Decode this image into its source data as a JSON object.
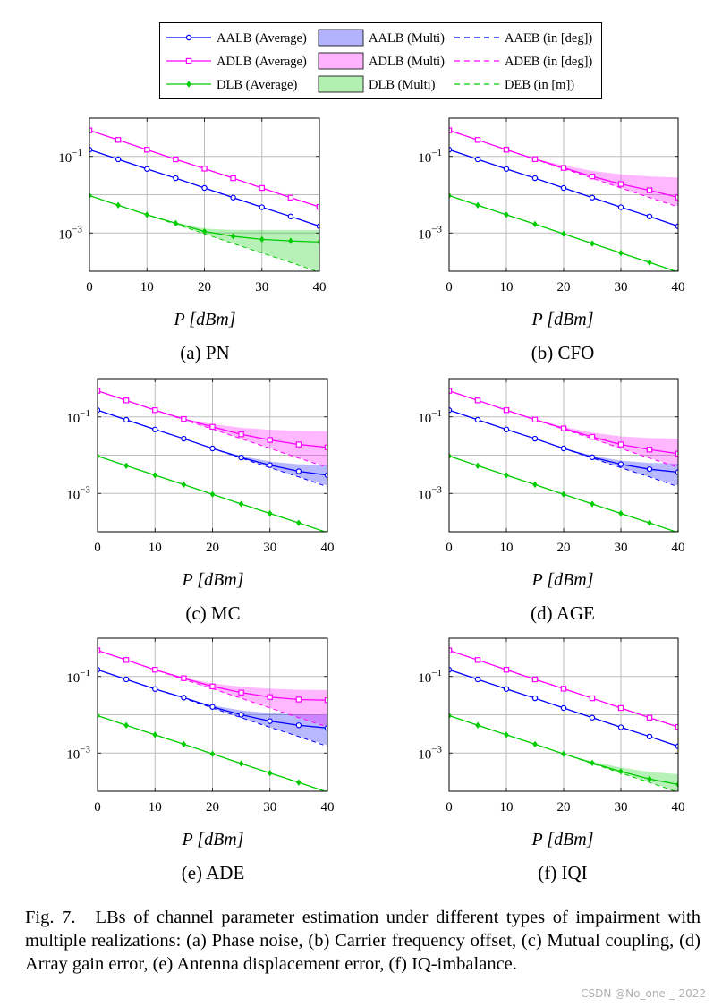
{
  "legend": {
    "entries": [
      {
        "label": "AALB (Average)",
        "kind": "line-marker",
        "color": "#0000ff",
        "marker": "circle"
      },
      {
        "label": "AALB (Multi)",
        "kind": "fill",
        "color": "#0000ff"
      },
      {
        "label": "AAEB (in [deg])",
        "kind": "dashed",
        "color": "#0000ff"
      },
      {
        "label": "ADLB (Average)",
        "kind": "line-marker",
        "color": "#ff00ff",
        "marker": "square"
      },
      {
        "label": "ADLB (Multi)",
        "kind": "fill",
        "color": "#ff00ff"
      },
      {
        "label": "ADEB (in [deg])",
        "kind": "dashed",
        "color": "#ff00ff"
      },
      {
        "label": "DLB (Average)",
        "kind": "line-marker",
        "color": "#00cc00",
        "marker": "diamond"
      },
      {
        "label": "DLB (Multi)",
        "kind": "fill",
        "color": "#00cc00"
      },
      {
        "label": "DEB (in [m])",
        "kind": "dashed",
        "color": "#00cc00"
      }
    ]
  },
  "caption": {
    "label": "Fig. 7.",
    "text": "LBs of channel parameter estimation under different types of impairment with multiple realizations: (a) Phase noise, (b) Carrier frequency offset, (c) Mutual coupling, (d) Array gain error, (e) Antenna displacement error, (f) IQ-imbalance."
  },
  "watermark": "CSDN @No_one-_-2022",
  "chart_data": [
    {
      "type": "line",
      "subcaption": "(a) PN",
      "xlabel": "P [dBm]",
      "ylabel": "",
      "x": [
        0,
        5,
        10,
        15,
        20,
        25,
        30,
        35,
        40
      ],
      "xlim": [
        0,
        40
      ],
      "ylim_log10": [
        -4,
        0
      ],
      "yscale": "log",
      "xticks": [
        "0",
        "10",
        "20",
        "30",
        "40"
      ],
      "yticks": [
        "10^-1",
        "10^-3"
      ],
      "grid": true,
      "series": [
        {
          "name": "AALB (Average)",
          "values": [
            0.15,
            0.084,
            0.047,
            0.027,
            0.015,
            0.0084,
            0.0047,
            0.0027,
            0.0015
          ]
        },
        {
          "name": "AAEB (in [deg])",
          "values": [
            0.15,
            0.084,
            0.047,
            0.027,
            0.015,
            0.0084,
            0.0047,
            0.0027,
            0.0015
          ]
        },
        {
          "name": "ADLB (Average)",
          "values": [
            0.48,
            0.27,
            0.15,
            0.084,
            0.048,
            0.027,
            0.015,
            0.0084,
            0.0048
          ]
        },
        {
          "name": "ADEB (in [deg])",
          "values": [
            0.48,
            0.27,
            0.15,
            0.084,
            0.048,
            0.027,
            0.015,
            0.0084,
            0.0048
          ]
        },
        {
          "name": "DLB (Average)",
          "values": [
            0.0095,
            0.0053,
            0.003,
            0.0018,
            0.0011,
            0.00082,
            0.00068,
            0.00062,
            0.00058
          ]
        },
        {
          "name": "DEB (in [m])",
          "values": [
            0.0095,
            0.0053,
            0.003,
            0.0017,
            0.00095,
            0.00053,
            0.0003,
            0.00017,
            9.5e-05
          ]
        },
        {
          "name": "DLB (Multi) lower",
          "values": [
            0.0095,
            0.0053,
            0.003,
            0.0017,
            0.00095,
            0.00053,
            0.0003,
            0.00017,
            0.0001
          ]
        },
        {
          "name": "DLB (Multi) upper",
          "values": [
            0.0095,
            0.0053,
            0.003,
            0.0019,
            0.0013,
            0.0012,
            0.0012,
            0.0012,
            0.0012
          ]
        }
      ]
    },
    {
      "type": "line",
      "subcaption": "(b) CFO",
      "xlabel": "P [dBm]",
      "ylabel": "",
      "x": [
        0,
        5,
        10,
        15,
        20,
        25,
        30,
        35,
        40
      ],
      "xlim": [
        0,
        40
      ],
      "ylim_log10": [
        -4,
        0
      ],
      "yscale": "log",
      "xticks": [
        "0",
        "10",
        "20",
        "30",
        "40"
      ],
      "yticks": [
        "10^-1",
        "10^-3"
      ],
      "grid": true,
      "series": [
        {
          "name": "AALB (Average)",
          "values": [
            0.15,
            0.084,
            0.047,
            0.027,
            0.015,
            0.0084,
            0.0047,
            0.0027,
            0.0015
          ]
        },
        {
          "name": "AAEB (in [deg])",
          "values": [
            0.15,
            0.084,
            0.047,
            0.027,
            0.015,
            0.0084,
            0.0047,
            0.0027,
            0.0015
          ]
        },
        {
          "name": "ADLB (Average)",
          "values": [
            0.48,
            0.27,
            0.15,
            0.085,
            0.05,
            0.03,
            0.019,
            0.013,
            0.0085
          ]
        },
        {
          "name": "ADEB (in [deg])",
          "values": [
            0.48,
            0.27,
            0.15,
            0.084,
            0.048,
            0.027,
            0.015,
            0.0084,
            0.0048
          ]
        },
        {
          "name": "ADLB (Multi) lower",
          "values": [
            0.48,
            0.27,
            0.15,
            0.084,
            0.048,
            0.027,
            0.015,
            0.0085,
            0.005
          ]
        },
        {
          "name": "ADLB (Multi) upper",
          "values": [
            0.48,
            0.27,
            0.15,
            0.088,
            0.058,
            0.042,
            0.034,
            0.03,
            0.028
          ]
        },
        {
          "name": "DLB (Average)",
          "values": [
            0.0095,
            0.0053,
            0.003,
            0.0017,
            0.00095,
            0.00053,
            0.0003,
            0.00017,
            9.5e-05
          ]
        },
        {
          "name": "DEB (in [m])",
          "values": [
            0.0095,
            0.0053,
            0.003,
            0.0017,
            0.00095,
            0.00053,
            0.0003,
            0.00017,
            9.5e-05
          ]
        }
      ]
    },
    {
      "type": "line",
      "subcaption": "(c) MC",
      "xlabel": "P [dBm]",
      "ylabel": "",
      "x": [
        0,
        5,
        10,
        15,
        20,
        25,
        30,
        35,
        40
      ],
      "xlim": [
        0,
        40
      ],
      "ylim_log10": [
        -4,
        0
      ],
      "yscale": "log",
      "xticks": [
        "0",
        "10",
        "20",
        "30",
        "40"
      ],
      "yticks": [
        "10^-1",
        "10^-3"
      ],
      "grid": true,
      "series": [
        {
          "name": "AALB (Average)",
          "values": [
            0.15,
            0.084,
            0.047,
            0.027,
            0.015,
            0.0087,
            0.0055,
            0.0038,
            0.003
          ]
        },
        {
          "name": "AAEB (in [deg])",
          "values": [
            0.15,
            0.084,
            0.047,
            0.027,
            0.015,
            0.0084,
            0.0047,
            0.0027,
            0.0015
          ]
        },
        {
          "name": "AALB (Multi) lower",
          "values": [
            0.15,
            0.084,
            0.047,
            0.027,
            0.015,
            0.0084,
            0.0047,
            0.0027,
            0.0016
          ]
        },
        {
          "name": "AALB (Multi) upper",
          "values": [
            0.15,
            0.084,
            0.047,
            0.027,
            0.0155,
            0.0095,
            0.0068,
            0.0058,
            0.0055
          ]
        },
        {
          "name": "ADLB (Average)",
          "values": [
            0.48,
            0.27,
            0.15,
            0.088,
            0.055,
            0.035,
            0.025,
            0.019,
            0.016
          ]
        },
        {
          "name": "ADEB (in [deg])",
          "values": [
            0.48,
            0.27,
            0.15,
            0.084,
            0.048,
            0.027,
            0.015,
            0.0084,
            0.0048
          ]
        },
        {
          "name": "ADLB (Multi) lower",
          "values": [
            0.48,
            0.27,
            0.15,
            0.084,
            0.048,
            0.027,
            0.015,
            0.0085,
            0.005
          ]
        },
        {
          "name": "ADLB (Multi) upper",
          "values": [
            0.48,
            0.27,
            0.15,
            0.09,
            0.065,
            0.052,
            0.046,
            0.043,
            0.042
          ]
        },
        {
          "name": "DLB (Average)",
          "values": [
            0.0095,
            0.0053,
            0.003,
            0.0017,
            0.00095,
            0.00053,
            0.0003,
            0.00017,
            9.5e-05
          ]
        },
        {
          "name": "DEB (in [m])",
          "values": [
            0.0095,
            0.0053,
            0.003,
            0.0017,
            0.00095,
            0.00053,
            0.0003,
            0.00017,
            9.5e-05
          ]
        }
      ]
    },
    {
      "type": "line",
      "subcaption": "(d) AGE",
      "xlabel": "P [dBm]",
      "ylabel": "",
      "x": [
        0,
        5,
        10,
        15,
        20,
        25,
        30,
        35,
        40
      ],
      "xlim": [
        0,
        40
      ],
      "ylim_log10": [
        -4,
        0
      ],
      "yscale": "log",
      "xticks": [
        "0",
        "10",
        "20",
        "30",
        "40"
      ],
      "yticks": [
        "10^-1",
        "10^-3"
      ],
      "grid": true,
      "series": [
        {
          "name": "AALB (Average)",
          "values": [
            0.15,
            0.084,
            0.047,
            0.027,
            0.015,
            0.0088,
            0.0058,
            0.0043,
            0.0036
          ]
        },
        {
          "name": "AAEB (in [deg])",
          "values": [
            0.15,
            0.084,
            0.047,
            0.027,
            0.015,
            0.0084,
            0.0047,
            0.0027,
            0.0015
          ]
        },
        {
          "name": "AALB (Multi) lower",
          "values": [
            0.15,
            0.084,
            0.047,
            0.027,
            0.015,
            0.0084,
            0.0047,
            0.0027,
            0.0016
          ]
        },
        {
          "name": "AALB (Multi) upper",
          "values": [
            0.15,
            0.084,
            0.047,
            0.027,
            0.0155,
            0.0097,
            0.0072,
            0.0063,
            0.006
          ]
        },
        {
          "name": "ADLB (Average)",
          "values": [
            0.48,
            0.27,
            0.15,
            0.085,
            0.05,
            0.03,
            0.019,
            0.014,
            0.011
          ]
        },
        {
          "name": "ADEB (in [deg])",
          "values": [
            0.48,
            0.27,
            0.15,
            0.084,
            0.048,
            0.027,
            0.015,
            0.0084,
            0.0048
          ]
        },
        {
          "name": "ADLB (Multi) lower",
          "values": [
            0.48,
            0.27,
            0.15,
            0.084,
            0.048,
            0.027,
            0.015,
            0.0085,
            0.005
          ]
        },
        {
          "name": "ADLB (Multi) upper",
          "values": [
            0.48,
            0.27,
            0.15,
            0.088,
            0.055,
            0.039,
            0.031,
            0.028,
            0.027
          ]
        },
        {
          "name": "DLB (Average)",
          "values": [
            0.0095,
            0.0053,
            0.003,
            0.0017,
            0.00095,
            0.00053,
            0.0003,
            0.00017,
            9.5e-05
          ]
        },
        {
          "name": "DEB (in [m])",
          "values": [
            0.0095,
            0.0053,
            0.003,
            0.0017,
            0.00095,
            0.00053,
            0.0003,
            0.00017,
            9.5e-05
          ]
        }
      ]
    },
    {
      "type": "line",
      "subcaption": "(e) ADE",
      "xlabel": "P [dBm]",
      "ylabel": "",
      "x": [
        0,
        5,
        10,
        15,
        20,
        25,
        30,
        35,
        40
      ],
      "xlim": [
        0,
        40
      ],
      "ylim_log10": [
        -4,
        0
      ],
      "yscale": "log",
      "xticks": [
        "0",
        "10",
        "20",
        "30",
        "40"
      ],
      "yticks": [
        "10^-1",
        "10^-3"
      ],
      "grid": true,
      "series": [
        {
          "name": "AALB (Average)",
          "values": [
            0.15,
            0.084,
            0.047,
            0.028,
            0.016,
            0.01,
            0.0068,
            0.0053,
            0.0045
          ]
        },
        {
          "name": "AAEB (in [deg])",
          "values": [
            0.15,
            0.084,
            0.047,
            0.027,
            0.015,
            0.0084,
            0.0047,
            0.0027,
            0.0015
          ]
        },
        {
          "name": "AALB (Multi) lower",
          "values": [
            0.15,
            0.084,
            0.047,
            0.027,
            0.015,
            0.0084,
            0.0047,
            0.0027,
            0.0016
          ]
        },
        {
          "name": "AALB (Multi) upper",
          "values": [
            0.15,
            0.084,
            0.047,
            0.028,
            0.0175,
            0.013,
            0.011,
            0.0102,
            0.01
          ]
        },
        {
          "name": "ADLB (Average)",
          "values": [
            0.48,
            0.27,
            0.15,
            0.09,
            0.055,
            0.038,
            0.029,
            0.025,
            0.024
          ]
        },
        {
          "name": "ADEB (in [deg])",
          "values": [
            0.48,
            0.27,
            0.15,
            0.084,
            0.048,
            0.027,
            0.015,
            0.0084,
            0.0048
          ]
        },
        {
          "name": "ADLB (Multi) lower",
          "values": [
            0.48,
            0.27,
            0.15,
            0.084,
            0.048,
            0.027,
            0.015,
            0.0085,
            0.005
          ]
        },
        {
          "name": "ADLB (Multi) upper",
          "values": [
            0.48,
            0.27,
            0.15,
            0.092,
            0.066,
            0.054,
            0.048,
            0.045,
            0.044
          ]
        },
        {
          "name": "DLB (Average)",
          "values": [
            0.0095,
            0.0053,
            0.003,
            0.0017,
            0.00095,
            0.00053,
            0.0003,
            0.00017,
            9.5e-05
          ]
        },
        {
          "name": "DEB (in [m])",
          "values": [
            0.0095,
            0.0053,
            0.003,
            0.0017,
            0.00095,
            0.00053,
            0.0003,
            0.00017,
            9.5e-05
          ]
        }
      ]
    },
    {
      "type": "line",
      "subcaption": "(f) IQI",
      "xlabel": "P [dBm]",
      "ylabel": "",
      "x": [
        0,
        5,
        10,
        15,
        20,
        25,
        30,
        35,
        40
      ],
      "xlim": [
        0,
        40
      ],
      "ylim_log10": [
        -4,
        0
      ],
      "yscale": "log",
      "xticks": [
        "0",
        "10",
        "20",
        "30",
        "40"
      ],
      "yticks": [
        "10^-1",
        "10^-3"
      ],
      "grid": true,
      "series": [
        {
          "name": "AALB (Average)",
          "values": [
            0.15,
            0.084,
            0.047,
            0.027,
            0.015,
            0.0084,
            0.0047,
            0.0027,
            0.0015
          ]
        },
        {
          "name": "AAEB (in [deg])",
          "values": [
            0.15,
            0.084,
            0.047,
            0.027,
            0.015,
            0.0084,
            0.0047,
            0.0027,
            0.0015
          ]
        },
        {
          "name": "ADLB (Average)",
          "values": [
            0.48,
            0.27,
            0.15,
            0.084,
            0.048,
            0.027,
            0.015,
            0.0084,
            0.0048
          ]
        },
        {
          "name": "ADEB (in [deg])",
          "values": [
            0.48,
            0.27,
            0.15,
            0.084,
            0.048,
            0.027,
            0.015,
            0.0084,
            0.0048
          ]
        },
        {
          "name": "DLB (Average)",
          "values": [
            0.0095,
            0.0053,
            0.003,
            0.0017,
            0.00095,
            0.00055,
            0.00033,
            0.00021,
            0.00015
          ]
        },
        {
          "name": "DEB (in [m])",
          "values": [
            0.0095,
            0.0053,
            0.003,
            0.0017,
            0.00095,
            0.00053,
            0.0003,
            0.00017,
            9.5e-05
          ]
        },
        {
          "name": "DLB (Multi) lower",
          "values": [
            0.0095,
            0.0053,
            0.003,
            0.0017,
            0.00095,
            0.00053,
            0.0003,
            0.00017,
            0.0001
          ]
        },
        {
          "name": "DLB (Multi) upper",
          "values": [
            0.0095,
            0.0053,
            0.003,
            0.0017,
            0.00097,
            0.0006,
            0.00042,
            0.00032,
            0.00028
          ]
        }
      ]
    }
  ]
}
